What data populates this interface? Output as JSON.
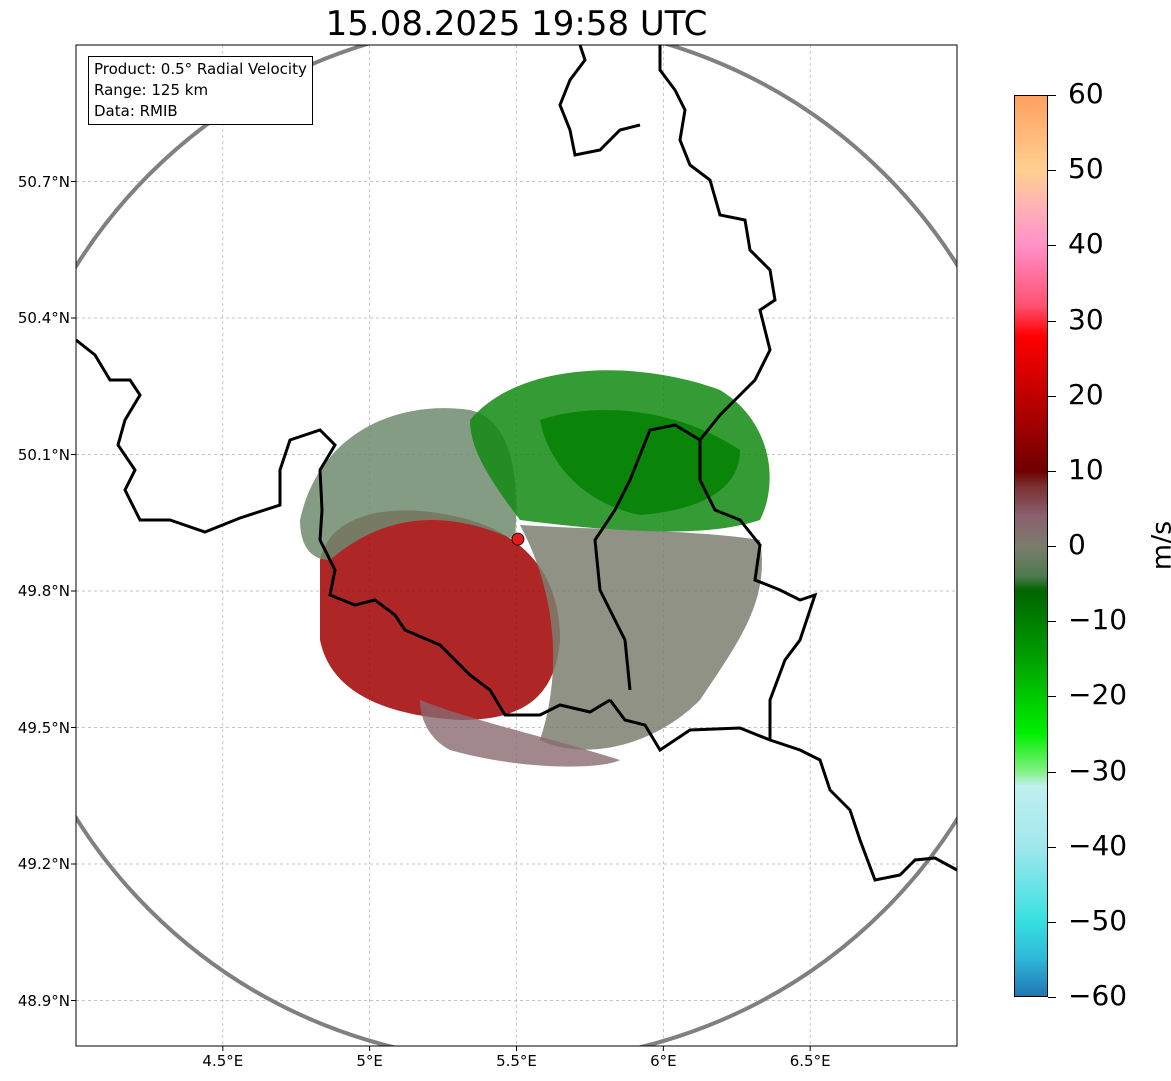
{
  "title": "15.08.2025 19:58 UTC",
  "info_box": {
    "product": "Product: 0.5° Radial Velocity",
    "range": "Range: 125 km",
    "data": "Data: RMIB"
  },
  "map": {
    "lon_range": [
      4.0,
      7.0
    ],
    "lat_range": [
      48.8,
      51.0
    ],
    "lat_ticks": [
      "50.7°N",
      "50.4°N",
      "50.1°N",
      "49.8°N",
      "49.5°N",
      "49.2°N",
      "48.9°N"
    ],
    "lat_values": [
      50.7,
      50.4,
      50.1,
      49.8,
      49.5,
      49.2,
      48.9
    ],
    "lon_ticks": [
      "4.5°E",
      "5°E",
      "5.5°E",
      "6°E",
      "6.5°E"
    ],
    "lon_values": [
      4.5,
      5.0,
      5.5,
      6.0,
      6.5
    ],
    "radar_site": {
      "lon": 5.505,
      "lat": 49.914
    },
    "range_ring_color": "#808080",
    "site_color": "#e41a1c",
    "border_color": "#000000",
    "grid": true
  },
  "colorbar": {
    "unit": "m/s",
    "min": -60,
    "max": 60,
    "tick_labels": [
      "60",
      "50",
      "40",
      "30",
      "20",
      "10",
      "0",
      "−10",
      "−20",
      "−30",
      "−40",
      "−50",
      "−60"
    ],
    "tick_values": [
      60,
      50,
      40,
      30,
      20,
      10,
      0,
      -10,
      -20,
      -30,
      -40,
      -50,
      -60
    ],
    "stops": [
      {
        "v": -60,
        "c": "#1f77b4"
      },
      {
        "v": -55,
        "c": "#2eb8d8"
      },
      {
        "v": -50,
        "c": "#37e0e0"
      },
      {
        "v": -40,
        "c": "#a0e8ec"
      },
      {
        "v": -32,
        "c": "#c0f0f0"
      },
      {
        "v": -30,
        "c": "#80f080"
      },
      {
        "v": -25,
        "c": "#00f000"
      },
      {
        "v": -15,
        "c": "#00a000"
      },
      {
        "v": -6,
        "c": "#006400"
      },
      {
        "v": -4,
        "c": "#4f7a4f"
      },
      {
        "v": 0,
        "c": "#7c7c6c"
      },
      {
        "v": 4,
        "c": "#8a6070"
      },
      {
        "v": 8,
        "c": "#7a3030"
      },
      {
        "v": 10,
        "c": "#700000"
      },
      {
        "v": 20,
        "c": "#c00000"
      },
      {
        "v": 28,
        "c": "#ff0000"
      },
      {
        "v": 32,
        "c": "#ff5070"
      },
      {
        "v": 40,
        "c": "#ff90c8"
      },
      {
        "v": 45,
        "c": "#ffb0b8"
      },
      {
        "v": 50,
        "c": "#ffd090"
      },
      {
        "v": 60,
        "c": "#ffa060"
      }
    ]
  }
}
